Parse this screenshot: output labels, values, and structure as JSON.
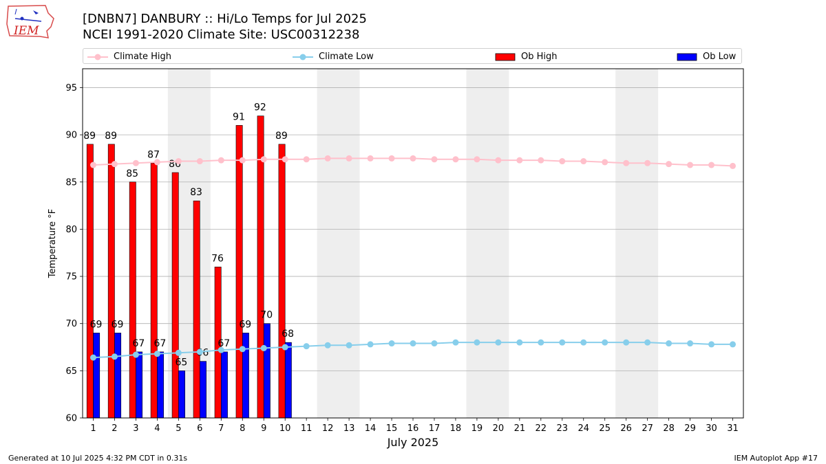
{
  "title_line1": "[DNBN7] DANBURY :: Hi/Lo Temps for Jul 2025",
  "title_line2": "NCEI 1991-2020 Climate Site: USC00312238",
  "logo_text": "IEM",
  "footer_left": "Generated at 10 Jul 2025 4:32 PM CDT in 0.31s",
  "footer_right": "IEM Autoplot App #17",
  "legend": [
    {
      "label": "Climate High",
      "kind": "line",
      "color": "#ffc0cb"
    },
    {
      "label": "Climate Low",
      "kind": "line",
      "color": "#87ceeb"
    },
    {
      "label": "Ob High",
      "kind": "bar",
      "color": "#ff0000"
    },
    {
      "label": "Ob Low",
      "kind": "bar",
      "color": "#0000ff"
    }
  ],
  "chart_data": {
    "type": "bar",
    "xlabel": "July 2025",
    "ylabel": "Temperature °F",
    "xlim": [
      0.5,
      31.5
    ],
    "ylim": [
      60,
      97
    ],
    "yticks": [
      60,
      65,
      70,
      75,
      80,
      85,
      90,
      95
    ],
    "grid": "horizontal",
    "legend_position": "top",
    "weekend_shading_days": [
      [
        5,
        6
      ],
      [
        12,
        13
      ],
      [
        19,
        20
      ],
      [
        26,
        27
      ]
    ],
    "x": [
      1,
      2,
      3,
      4,
      5,
      6,
      7,
      8,
      9,
      10,
      11,
      12,
      13,
      14,
      15,
      16,
      17,
      18,
      19,
      20,
      21,
      22,
      23,
      24,
      25,
      26,
      27,
      28,
      29,
      30,
      31
    ],
    "series": [
      {
        "name": "Ob High",
        "kind": "bar",
        "color": "#ff0000",
        "x": [
          1,
          2,
          3,
          4,
          5,
          6,
          7,
          8,
          9,
          10
        ],
        "values": [
          89,
          89,
          85,
          87,
          86,
          83,
          76,
          91,
          92,
          89
        ]
      },
      {
        "name": "Ob Low",
        "kind": "bar",
        "color": "#0000ff",
        "x": [
          1,
          2,
          3,
          4,
          5,
          6,
          7,
          8,
          9,
          10
        ],
        "values": [
          69,
          69,
          67,
          67,
          65,
          66,
          67,
          69,
          70,
          68
        ]
      },
      {
        "name": "Climate High",
        "kind": "line",
        "color": "#ffc0cb",
        "values": [
          86.8,
          86.9,
          87.0,
          87.1,
          87.2,
          87.2,
          87.3,
          87.3,
          87.4,
          87.4,
          87.4,
          87.5,
          87.5,
          87.5,
          87.5,
          87.5,
          87.4,
          87.4,
          87.4,
          87.3,
          87.3,
          87.3,
          87.2,
          87.2,
          87.1,
          87.0,
          87.0,
          86.9,
          86.8,
          86.8,
          86.7
        ]
      },
      {
        "name": "Climate Low",
        "kind": "line",
        "color": "#87ceeb",
        "values": [
          66.4,
          66.5,
          66.7,
          66.8,
          66.9,
          67.0,
          67.2,
          67.3,
          67.4,
          67.5,
          67.6,
          67.7,
          67.7,
          67.8,
          67.9,
          67.9,
          67.9,
          68.0,
          68.0,
          68.0,
          68.0,
          68.0,
          68.0,
          68.0,
          68.0,
          68.0,
          68.0,
          67.9,
          67.9,
          67.8,
          67.8
        ]
      }
    ]
  }
}
